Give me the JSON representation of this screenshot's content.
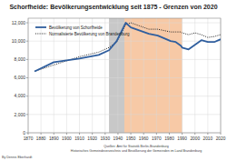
{
  "chart_data": {
    "type": "line",
    "title": "Schorfheide: Bevölkerungsentwicklung seit 1875 - Grenzen von 2020",
    "x": [
      1875,
      1890,
      1910,
      1925,
      1933,
      1939,
      1946,
      1950,
      1964,
      1971,
      1981,
      1985,
      1989,
      1990,
      1995,
      2000,
      2005,
      2010,
      2015,
      2020
    ],
    "series": [
      {
        "name": "Bevölkerung von Schorfheide",
        "color": "#2f5e9e",
        "line_style": "solid",
        "values": [
          6700,
          7700,
          8100,
          8500,
          9000,
          10000,
          12000,
          11500,
          10800,
          10600,
          10000,
          9900,
          9500,
          9300,
          9100,
          9600,
          10100,
          9900,
          9900,
          10200
        ]
      },
      {
        "name": "Normalisierte Bevölkerung von Brandenburg",
        "color": "#222222",
        "line_style": "dotted",
        "values": [
          6700,
          7400,
          8300,
          8800,
          9300,
          9900,
          11800,
          12000,
          11300,
          11300,
          11000,
          11000,
          11000,
          10900,
          10700,
          10900,
          10700,
          10400,
          10500,
          10700
        ]
      }
    ],
    "xlim": [
      1870,
      2020
    ],
    "xticks": [
      1870,
      1880,
      1890,
      1900,
      1910,
      1920,
      1930,
      1940,
      1950,
      1960,
      1970,
      1980,
      1990,
      2000,
      2010,
      2020
    ],
    "ylim": [
      0,
      12500
    ],
    "yticks": [
      0,
      {
        "value": 2000,
        "label": "2,000"
      },
      {
        "value": 4000,
        "label": "4,000"
      },
      {
        "value": 6000,
        "label": "6,000"
      },
      {
        "value": 8000,
        "label": "8,000"
      },
      {
        "value": 10000,
        "label": "10,000"
      },
      {
        "value": 12000,
        "label": "12,000"
      }
    ],
    "grid": true,
    "legend": "upper left",
    "shaded_periods": [
      {
        "from": 1933,
        "to": 1945,
        "color": "#c8c8c8"
      },
      {
        "from": 1945,
        "to": 1990,
        "color": "#f7c9a6"
      }
    ],
    "sources": [
      "Quellen: Amt für Statistik Berlin-Brandenburg",
      "Historisches Gemeindeverzeichnis und Bevölkerung der Gemeinden im Land Brandenburg"
    ],
    "author": "By Dennis Eberhardt"
  }
}
